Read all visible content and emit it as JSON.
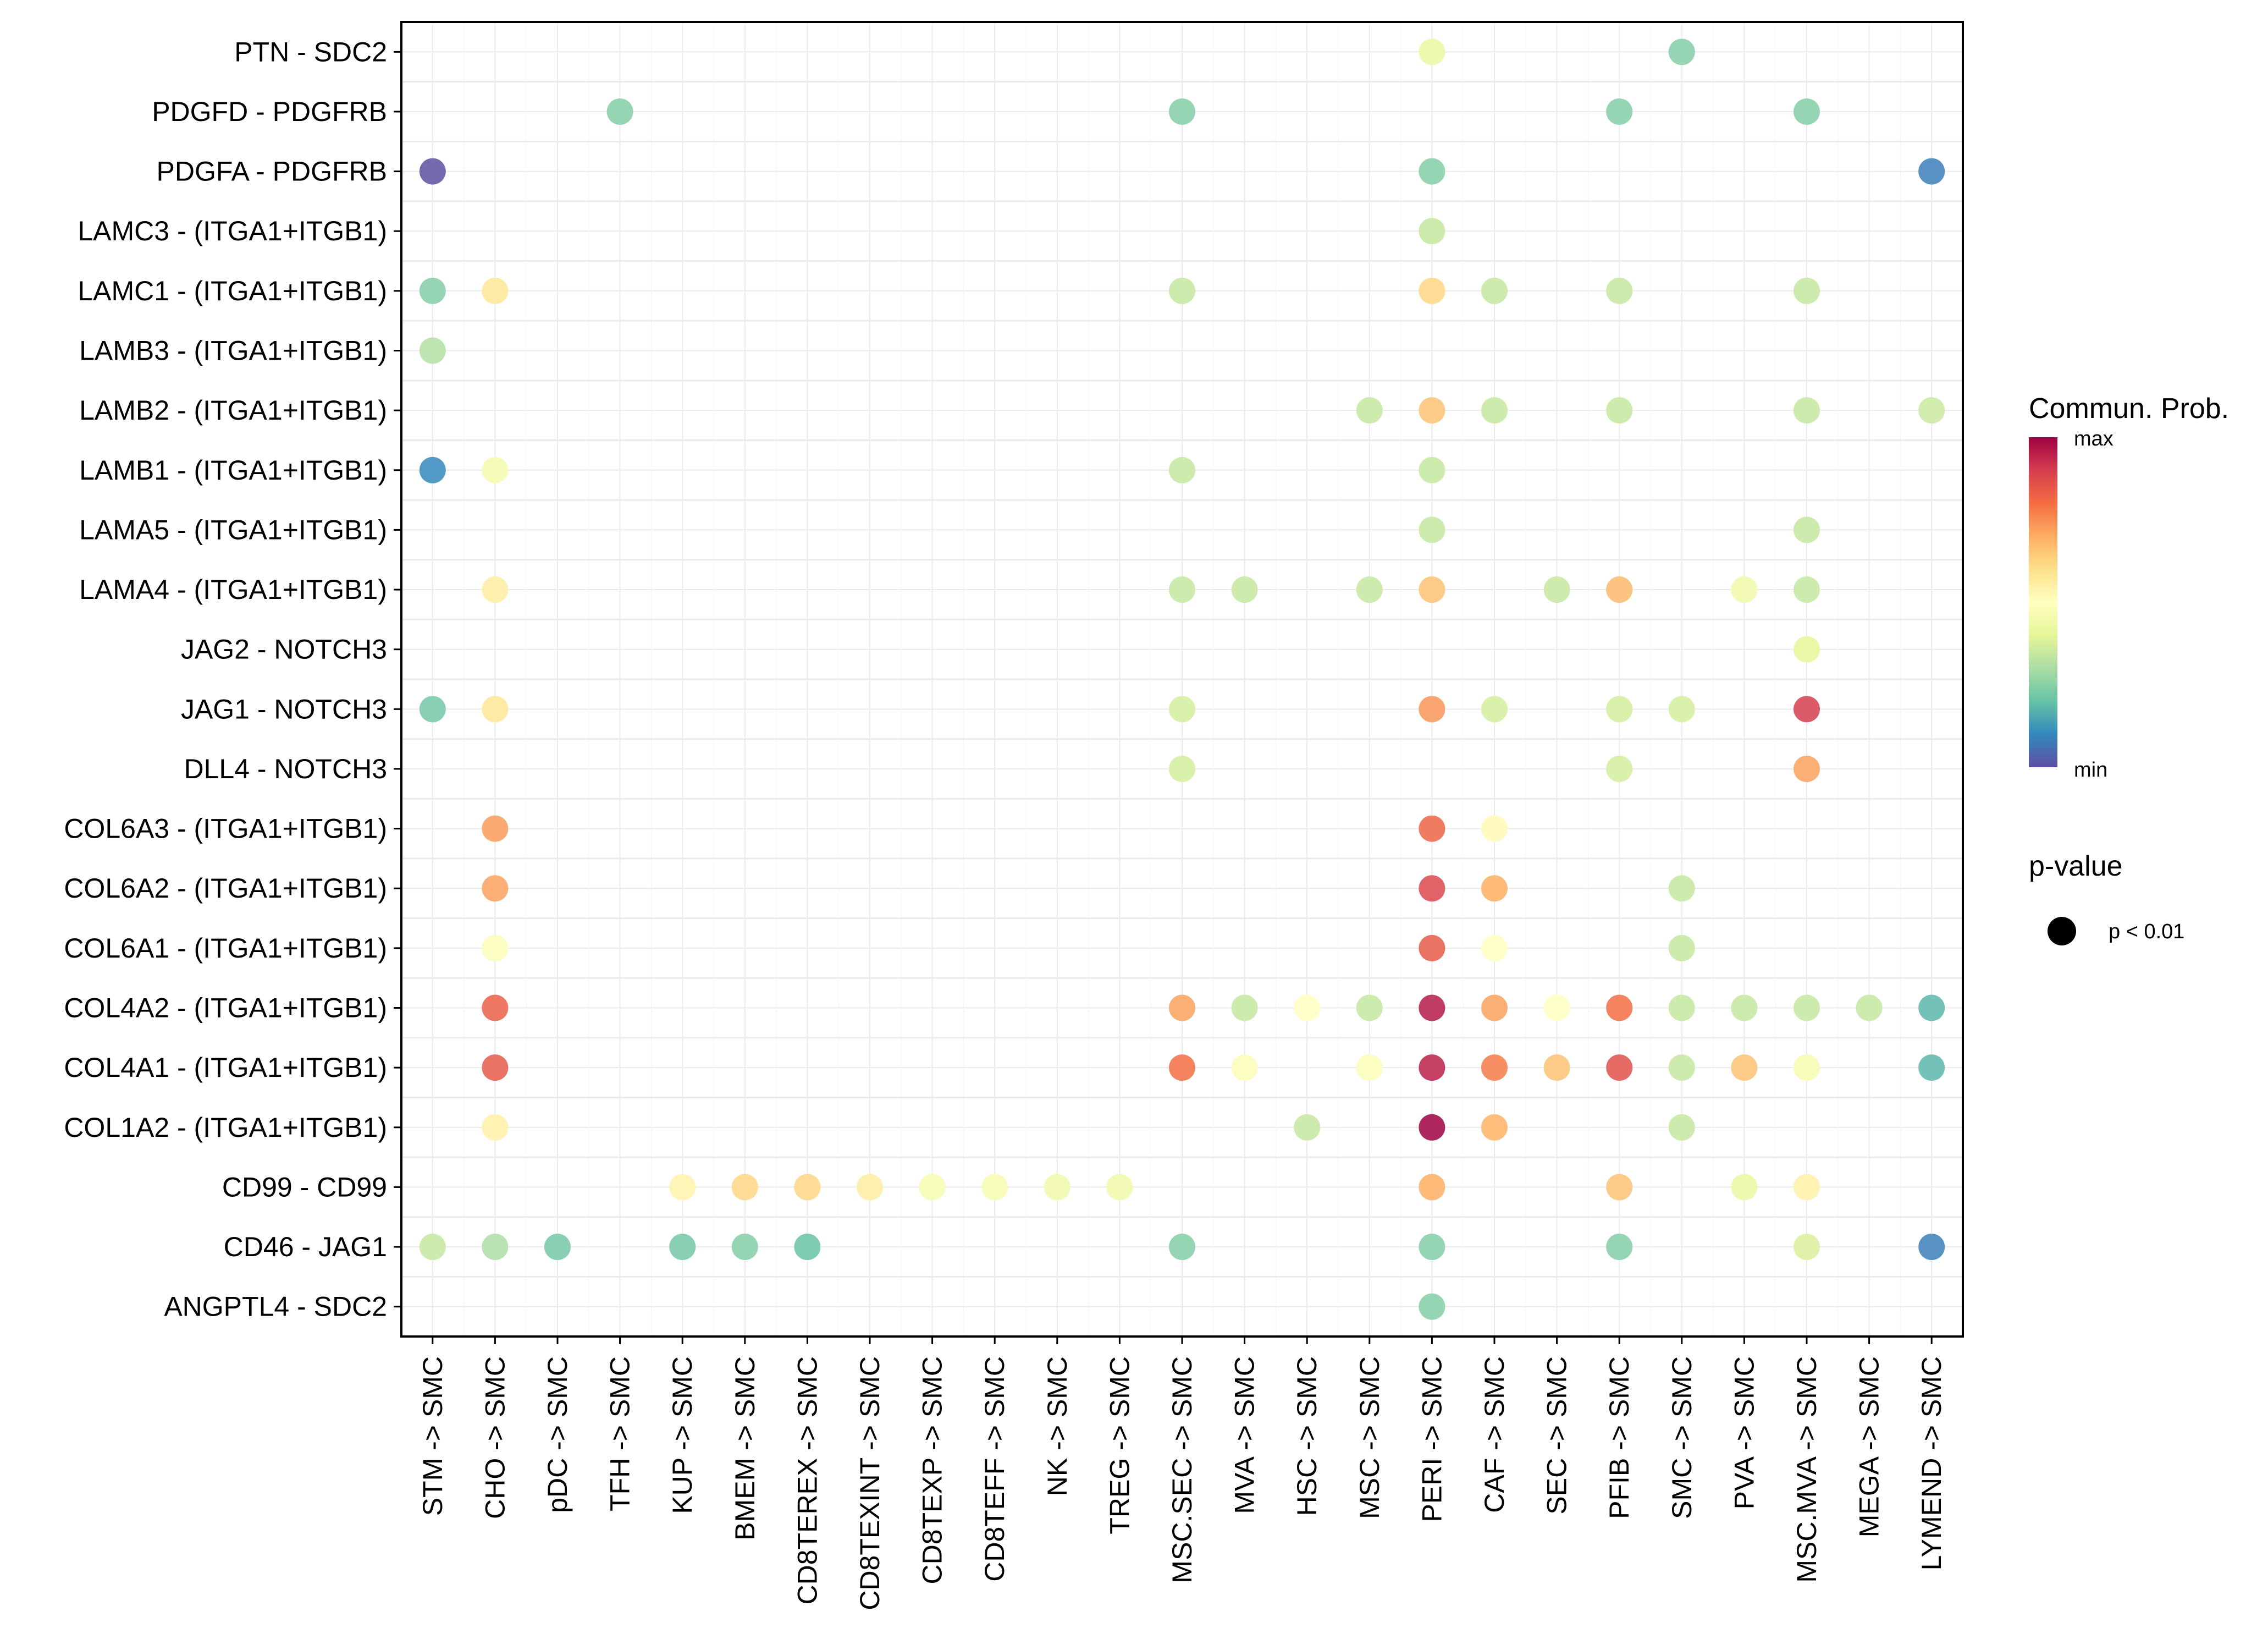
{
  "chart_data": {
    "type": "scatter",
    "subtype": "dot-plot",
    "title": "",
    "xlabel": "",
    "ylabel": "",
    "x_categories": [
      "STM -> SMC",
      "CHO -> SMC",
      "pDC -> SMC",
      "TFH -> SMC",
      "KUP -> SMC",
      "BMEM -> SMC",
      "CD8TEREX -> SMC",
      "CD8TEXINT -> SMC",
      "CD8TEXP -> SMC",
      "CD8TEFF -> SMC",
      "NK -> SMC",
      "TREG -> SMC",
      "MSC.SEC -> SMC",
      "MVA -> SMC",
      "HSC -> SMC",
      "MSC -> SMC",
      "PERI -> SMC",
      "CAF -> SMC",
      "SEC -> SMC",
      "PFIB -> SMC",
      "SMC -> SMC",
      "PVA -> SMC",
      "MSC.MVA -> SMC",
      "MEGA -> SMC",
      "LYMEND -> SMC"
    ],
    "y_categories": [
      "PTN - SDC2",
      "PDGFD - PDGFRB",
      "PDGFA - PDGFRB",
      "LAMC3 - (ITGA1+ITGB1)",
      "LAMC1 - (ITGA1+ITGB1)",
      "LAMB3 - (ITGA1+ITGB1)",
      "LAMB2 - (ITGA1+ITGB1)",
      "LAMB1 - (ITGA1+ITGB1)",
      "LAMA5 - (ITGA1+ITGB1)",
      "LAMA4 - (ITGA1+ITGB1)",
      "JAG2 - NOTCH3",
      "JAG1 - NOTCH3",
      "DLL4 - NOTCH3",
      "COL6A3 - (ITGA1+ITGB1)",
      "COL6A2 - (ITGA1+ITGB1)",
      "COL6A1 - (ITGA1+ITGB1)",
      "COL4A2 - (ITGA1+ITGB1)",
      "COL4A1 - (ITGA1+ITGB1)",
      "COL1A2 - (ITGA1+ITGB1)",
      "CD99 - CD99",
      "CD46 - JAG1",
      "ANGPTL4 - SDC2"
    ],
    "value_scale": "relative communication probability, 0 = min, 1 = max",
    "points": [
      {
        "y": "PTN - SDC2",
        "x": "PERI -> SMC",
        "v": 0.42
      },
      {
        "y": "PTN - SDC2",
        "x": "SMC -> SMC",
        "v": 0.24
      },
      {
        "y": "PDGFD - PDGFRB",
        "x": "TFH -> SMC",
        "v": 0.24
      },
      {
        "y": "PDGFD - PDGFRB",
        "x": "MSC.SEC -> SMC",
        "v": 0.24
      },
      {
        "y": "PDGFD - PDGFRB",
        "x": "PFIB -> SMC",
        "v": 0.24
      },
      {
        "y": "PDGFD - PDGFRB",
        "x": "MSC.MVA -> SMC",
        "v": 0.24
      },
      {
        "y": "PDGFA - PDGFRB",
        "x": "STM -> SMC",
        "v": 0.0
      },
      {
        "y": "PDGFA - PDGFRB",
        "x": "PERI -> SMC",
        "v": 0.24
      },
      {
        "y": "PDGFA - PDGFRB",
        "x": "LYMEND -> SMC",
        "v": 0.08
      },
      {
        "y": "LAMC3 - (ITGA1+ITGB1)",
        "x": "PERI -> SMC",
        "v": 0.34
      },
      {
        "y": "LAMC1 - (ITGA1+ITGB1)",
        "x": "STM -> SMC",
        "v": 0.24
      },
      {
        "y": "LAMC1 - (ITGA1+ITGB1)",
        "x": "CHO -> SMC",
        "v": 0.58
      },
      {
        "y": "LAMC1 - (ITGA1+ITGB1)",
        "x": "MSC.SEC -> SMC",
        "v": 0.34
      },
      {
        "y": "LAMC1 - (ITGA1+ITGB1)",
        "x": "PERI -> SMC",
        "v": 0.62
      },
      {
        "y": "LAMC1 - (ITGA1+ITGB1)",
        "x": "CAF -> SMC",
        "v": 0.34
      },
      {
        "y": "LAMC1 - (ITGA1+ITGB1)",
        "x": "PFIB -> SMC",
        "v": 0.34
      },
      {
        "y": "LAMC1 - (ITGA1+ITGB1)",
        "x": "MSC.MVA -> SMC",
        "v": 0.34
      },
      {
        "y": "LAMB3 - (ITGA1+ITGB1)",
        "x": "STM -> SMC",
        "v": 0.31
      },
      {
        "y": "LAMB2 - (ITGA1+ITGB1)",
        "x": "MSC -> SMC",
        "v": 0.34
      },
      {
        "y": "LAMB2 - (ITGA1+ITGB1)",
        "x": "PERI -> SMC",
        "v": 0.66
      },
      {
        "y": "LAMB2 - (ITGA1+ITGB1)",
        "x": "CAF -> SMC",
        "v": 0.34
      },
      {
        "y": "LAMB2 - (ITGA1+ITGB1)",
        "x": "PFIB -> SMC",
        "v": 0.34
      },
      {
        "y": "LAMB2 - (ITGA1+ITGB1)",
        "x": "MSC.MVA -> SMC",
        "v": 0.34
      },
      {
        "y": "LAMB2 - (ITGA1+ITGB1)",
        "x": "LYMEND -> SMC",
        "v": 0.35
      },
      {
        "y": "LAMB1 - (ITGA1+ITGB1)",
        "x": "STM -> SMC",
        "v": 0.1
      },
      {
        "y": "LAMB1 - (ITGA1+ITGB1)",
        "x": "CHO -> SMC",
        "v": 0.45
      },
      {
        "y": "LAMB1 - (ITGA1+ITGB1)",
        "x": "MSC.SEC -> SMC",
        "v": 0.34
      },
      {
        "y": "LAMB1 - (ITGA1+ITGB1)",
        "x": "PERI -> SMC",
        "v": 0.34
      },
      {
        "y": "LAMA5 - (ITGA1+ITGB1)",
        "x": "PERI -> SMC",
        "v": 0.34
      },
      {
        "y": "LAMA5 - (ITGA1+ITGB1)",
        "x": "MSC.MVA -> SMC",
        "v": 0.34
      },
      {
        "y": "LAMA4 - (ITGA1+ITGB1)",
        "x": "CHO -> SMC",
        "v": 0.56
      },
      {
        "y": "LAMA4 - (ITGA1+ITGB1)",
        "x": "MSC.SEC -> SMC",
        "v": 0.34
      },
      {
        "y": "LAMA4 - (ITGA1+ITGB1)",
        "x": "MVA -> SMC",
        "v": 0.34
      },
      {
        "y": "LAMA4 - (ITGA1+ITGB1)",
        "x": "MSC -> SMC",
        "v": 0.34
      },
      {
        "y": "LAMA4 - (ITGA1+ITGB1)",
        "x": "PERI -> SMC",
        "v": 0.66
      },
      {
        "y": "LAMA4 - (ITGA1+ITGB1)",
        "x": "SEC -> SMC",
        "v": 0.34
      },
      {
        "y": "LAMA4 - (ITGA1+ITGB1)",
        "x": "PFIB -> SMC",
        "v": 0.68
      },
      {
        "y": "LAMA4 - (ITGA1+ITGB1)",
        "x": "PVA -> SMC",
        "v": 0.44
      },
      {
        "y": "LAMA4 - (ITGA1+ITGB1)",
        "x": "MSC.MVA -> SMC",
        "v": 0.34
      },
      {
        "y": "JAG2 - NOTCH3",
        "x": "MSC.MVA -> SMC",
        "v": 0.4
      },
      {
        "y": "JAG1 - NOTCH3",
        "x": "STM -> SMC",
        "v": 0.22
      },
      {
        "y": "JAG1 - NOTCH3",
        "x": "CHO -> SMC",
        "v": 0.58
      },
      {
        "y": "JAG1 - NOTCH3",
        "x": "MSC.SEC -> SMC",
        "v": 0.37
      },
      {
        "y": "JAG1 - NOTCH3",
        "x": "PERI -> SMC",
        "v": 0.74
      },
      {
        "y": "JAG1 - NOTCH3",
        "x": "CAF -> SMC",
        "v": 0.37
      },
      {
        "y": "JAG1 - NOTCH3",
        "x": "PFIB -> SMC",
        "v": 0.37
      },
      {
        "y": "JAG1 - NOTCH3",
        "x": "SMC -> SMC",
        "v": 0.37
      },
      {
        "y": "JAG1 - NOTCH3",
        "x": "MSC.MVA -> SMC",
        "v": 0.9
      },
      {
        "y": "DLL4 - NOTCH3",
        "x": "MSC.SEC -> SMC",
        "v": 0.37
      },
      {
        "y": "DLL4 - NOTCH3",
        "x": "PFIB -> SMC",
        "v": 0.37
      },
      {
        "y": "DLL4 - NOTCH3",
        "x": "MSC.MVA -> SMC",
        "v": 0.72
      },
      {
        "y": "COL6A3 - (ITGA1+ITGB1)",
        "x": "CHO -> SMC",
        "v": 0.73
      },
      {
        "y": "COL6A3 - (ITGA1+ITGB1)",
        "x": "PERI -> SMC",
        "v": 0.82
      },
      {
        "y": "COL6A3 - (ITGA1+ITGB1)",
        "x": "CAF -> SMC",
        "v": 0.52
      },
      {
        "y": "COL6A2 - (ITGA1+ITGB1)",
        "x": "CHO -> SMC",
        "v": 0.72
      },
      {
        "y": "COL6A2 - (ITGA1+ITGB1)",
        "x": "PERI -> SMC",
        "v": 0.88
      },
      {
        "y": "COL6A2 - (ITGA1+ITGB1)",
        "x": "CAF -> SMC",
        "v": 0.7
      },
      {
        "y": "COL6A2 - (ITGA1+ITGB1)",
        "x": "SMC -> SMC",
        "v": 0.34
      },
      {
        "y": "COL6A1 - (ITGA1+ITGB1)",
        "x": "CHO -> SMC",
        "v": 0.48
      },
      {
        "y": "COL6A1 - (ITGA1+ITGB1)",
        "x": "PERI -> SMC",
        "v": 0.84
      },
      {
        "y": "COL6A1 - (ITGA1+ITGB1)",
        "x": "CAF -> SMC",
        "v": 0.5
      },
      {
        "y": "COL6A1 - (ITGA1+ITGB1)",
        "x": "SMC -> SMC",
        "v": 0.34
      },
      {
        "y": "COL4A2 - (ITGA1+ITGB1)",
        "x": "CHO -> SMC",
        "v": 0.83
      },
      {
        "y": "COL4A2 - (ITGA1+ITGB1)",
        "x": "MSC.SEC -> SMC",
        "v": 0.72
      },
      {
        "y": "COL4A2 - (ITGA1+ITGB1)",
        "x": "MVA -> SMC",
        "v": 0.34
      },
      {
        "y": "COL4A2 - (ITGA1+ITGB1)",
        "x": "HSC -> SMC",
        "v": 0.5
      },
      {
        "y": "COL4A2 - (ITGA1+ITGB1)",
        "x": "MSC -> SMC",
        "v": 0.34
      },
      {
        "y": "COL4A2 - (ITGA1+ITGB1)",
        "x": "PERI -> SMC",
        "v": 0.96
      },
      {
        "y": "COL4A2 - (ITGA1+ITGB1)",
        "x": "CAF -> SMC",
        "v": 0.72
      },
      {
        "y": "COL4A2 - (ITGA1+ITGB1)",
        "x": "SEC -> SMC",
        "v": 0.5
      },
      {
        "y": "COL4A2 - (ITGA1+ITGB1)",
        "x": "PFIB -> SMC",
        "v": 0.8
      },
      {
        "y": "COL4A2 - (ITGA1+ITGB1)",
        "x": "SMC -> SMC",
        "v": 0.34
      },
      {
        "y": "COL4A2 - (ITGA1+ITGB1)",
        "x": "PVA -> SMC",
        "v": 0.34
      },
      {
        "y": "COL4A2 - (ITGA1+ITGB1)",
        "x": "MSC.MVA -> SMC",
        "v": 0.34
      },
      {
        "y": "COL4A2 - (ITGA1+ITGB1)",
        "x": "MEGA -> SMC",
        "v": 0.34
      },
      {
        "y": "COL4A2 - (ITGA1+ITGB1)",
        "x": "LYMEND -> SMC",
        "v": 0.18
      },
      {
        "y": "COL4A1 - (ITGA1+ITGB1)",
        "x": "CHO -> SMC",
        "v": 0.84
      },
      {
        "y": "COL4A1 - (ITGA1+ITGB1)",
        "x": "MSC.SEC -> SMC",
        "v": 0.8
      },
      {
        "y": "COL4A1 - (ITGA1+ITGB1)",
        "x": "MVA -> SMC",
        "v": 0.48
      },
      {
        "y": "COL4A1 - (ITGA1+ITGB1)",
        "x": "MSC -> SMC",
        "v": 0.48
      },
      {
        "y": "COL4A1 - (ITGA1+ITGB1)",
        "x": "PERI -> SMC",
        "v": 0.95
      },
      {
        "y": "COL4A1 - (ITGA1+ITGB1)",
        "x": "CAF -> SMC",
        "v": 0.78
      },
      {
        "y": "COL4A1 - (ITGA1+ITGB1)",
        "x": "SEC -> SMC",
        "v": 0.66
      },
      {
        "y": "COL4A1 - (ITGA1+ITGB1)",
        "x": "PFIB -> SMC",
        "v": 0.86
      },
      {
        "y": "COL4A1 - (ITGA1+ITGB1)",
        "x": "SMC -> SMC",
        "v": 0.34
      },
      {
        "y": "COL4A1 - (ITGA1+ITGB1)",
        "x": "PVA -> SMC",
        "v": 0.66
      },
      {
        "y": "COL4A1 - (ITGA1+ITGB1)",
        "x": "MSC.MVA -> SMC",
        "v": 0.46
      },
      {
        "y": "COL4A1 - (ITGA1+ITGB1)",
        "x": "LYMEND -> SMC",
        "v": 0.18
      },
      {
        "y": "COL1A2 - (ITGA1+ITGB1)",
        "x": "CHO -> SMC",
        "v": 0.55
      },
      {
        "y": "COL1A2 - (ITGA1+ITGB1)",
        "x": "HSC -> SMC",
        "v": 0.34
      },
      {
        "y": "COL1A2 - (ITGA1+ITGB1)",
        "x": "PERI -> SMC",
        "v": 1.0
      },
      {
        "y": "COL1A2 - (ITGA1+ITGB1)",
        "x": "CAF -> SMC",
        "v": 0.69
      },
      {
        "y": "COL1A2 - (ITGA1+ITGB1)",
        "x": "SMC -> SMC",
        "v": 0.34
      },
      {
        "y": "CD99 - CD99",
        "x": "KUP -> SMC",
        "v": 0.54
      },
      {
        "y": "CD99 - CD99",
        "x": "BMEM -> SMC",
        "v": 0.62
      },
      {
        "y": "CD99 - CD99",
        "x": "CD8TEREX -> SMC",
        "v": 0.62
      },
      {
        "y": "CD99 - CD99",
        "x": "CD8TEXINT -> SMC",
        "v": 0.56
      },
      {
        "y": "CD99 - CD99",
        "x": "CD8TEXP -> SMC",
        "v": 0.46
      },
      {
        "y": "CD99 - CD99",
        "x": "CD8TEFF -> SMC",
        "v": 0.46
      },
      {
        "y": "CD99 - CD99",
        "x": "NK -> SMC",
        "v": 0.44
      },
      {
        "y": "CD99 - CD99",
        "x": "TREG -> SMC",
        "v": 0.44
      },
      {
        "y": "CD99 - CD99",
        "x": "PERI -> SMC",
        "v": 0.7
      },
      {
        "y": "CD99 - CD99",
        "x": "PFIB -> SMC",
        "v": 0.66
      },
      {
        "y": "CD99 - CD99",
        "x": "PVA -> SMC",
        "v": 0.42
      },
      {
        "y": "CD99 - CD99",
        "x": "MSC.MVA -> SMC",
        "v": 0.55
      },
      {
        "y": "CD46 - JAG1",
        "x": "STM -> SMC",
        "v": 0.34
      },
      {
        "y": "CD46 - JAG1",
        "x": "CHO -> SMC",
        "v": 0.3
      },
      {
        "y": "CD46 - JAG1",
        "x": "pDC -> SMC",
        "v": 0.22
      },
      {
        "y": "CD46 - JAG1",
        "x": "KUP -> SMC",
        "v": 0.22
      },
      {
        "y": "CD46 - JAG1",
        "x": "BMEM -> SMC",
        "v": 0.24
      },
      {
        "y": "CD46 - JAG1",
        "x": "CD8TEREX -> SMC",
        "v": 0.2
      },
      {
        "y": "CD46 - JAG1",
        "x": "MSC.SEC -> SMC",
        "v": 0.24
      },
      {
        "y": "CD46 - JAG1",
        "x": "PERI -> SMC",
        "v": 0.24
      },
      {
        "y": "CD46 - JAG1",
        "x": "PFIB -> SMC",
        "v": 0.24
      },
      {
        "y": "CD46 - JAG1",
        "x": "MSC.MVA -> SMC",
        "v": 0.38
      },
      {
        "y": "CD46 - JAG1",
        "x": "LYMEND -> SMC",
        "v": 0.08
      },
      {
        "y": "ANGPTL4 - SDC2",
        "x": "PERI -> SMC",
        "v": 0.24
      }
    ],
    "legend": {
      "color_title": "Commun. Prob.",
      "color_max_label": "max",
      "color_min_label": "min",
      "palette": [
        "#5E4FA2",
        "#3288BD",
        "#66C2A5",
        "#ABDDA4",
        "#E6F598",
        "#FFFFBF",
        "#FEE08B",
        "#FDAE61",
        "#F46D43",
        "#D53E4F",
        "#9E0142"
      ],
      "size_title": "p-value",
      "size_entries": [
        "p < 0.01"
      ],
      "position": "right"
    },
    "grid": true
  }
}
